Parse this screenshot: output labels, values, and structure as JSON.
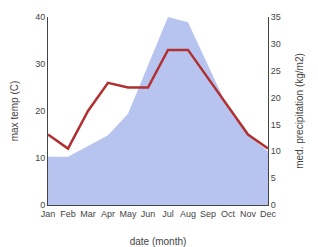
{
  "chart_data": {
    "type": "line",
    "categories": [
      "Jan",
      "Feb",
      "Mar",
      "Apr",
      "May",
      "Jun",
      "Jul",
      "Aug",
      "Sep",
      "Oct",
      "Nov",
      "Dec"
    ],
    "series": [
      {
        "type": "area",
        "axis": "y2",
        "color": "#b8c4f0",
        "values": [
          9,
          9,
          11,
          13,
          17,
          26,
          35,
          34,
          26,
          18,
          13,
          10
        ]
      },
      {
        "type": "line",
        "color": "#b03030",
        "values": [
          15,
          12,
          20,
          26,
          25,
          25,
          33,
          33,
          27,
          21,
          15,
          12
        ]
      }
    ],
    "xlabel": "date (month)",
    "ylabel": "max temp (C)",
    "y2label": "med. precipitation (kg/m2)",
    "ylim": [
      0,
      40
    ],
    "yticks": [
      0,
      10,
      20,
      30,
      40
    ],
    "y2lim": [
      0,
      35
    ],
    "y2ticks": [
      0,
      5,
      10,
      15,
      20,
      25,
      30,
      35
    ],
    "grid": false
  }
}
